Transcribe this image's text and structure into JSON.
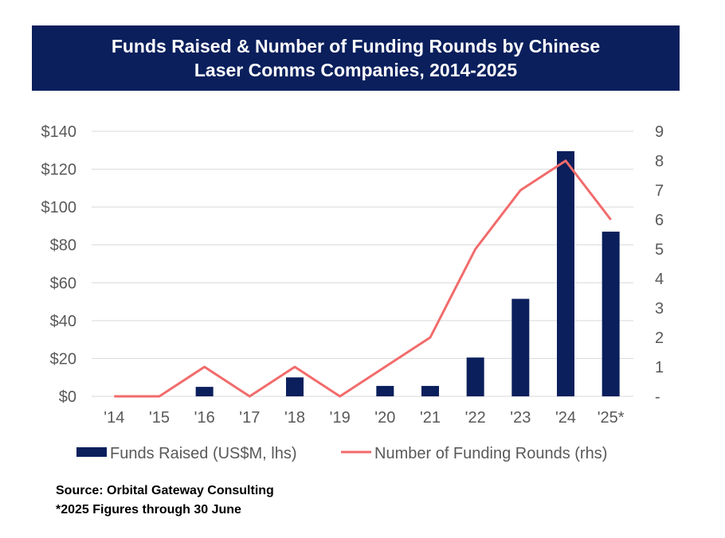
{
  "title_lines": [
    "Funds Raised & Number of Funding Rounds by Chinese",
    "Laser Comms Companies, 2014-2025"
  ],
  "colors": {
    "bar": "#0a1f5c",
    "line": "#f26b6b",
    "grid": "#d9d9d9",
    "tick": "#595959",
    "title_bg": "#0a1f5c"
  },
  "chart_data": {
    "type": "bar",
    "title": "Funds Raised & Number of Funding Rounds by Chinese Laser Comms Companies, 2014-2025",
    "categories": [
      "'14",
      "'15",
      "'16",
      "'17",
      "'18",
      "'19",
      "'20",
      "'21",
      "'22",
      "'23",
      "'24",
      "'25*"
    ],
    "series": [
      {
        "name": "Funds Raised (US$M, lhs)",
        "type": "bar",
        "axis": "left",
        "values": [
          0,
          0,
          5,
          0,
          10,
          0,
          5.5,
          5.5,
          20.5,
          51.5,
          129.5,
          87
        ]
      },
      {
        "name": "Number of Funding Rounds (rhs)",
        "type": "line",
        "axis": "right",
        "values": [
          0,
          0,
          1,
          0,
          1,
          0,
          1,
          2,
          5,
          7,
          8,
          6
        ]
      }
    ],
    "ylim_left": [
      0,
      140
    ],
    "ylim_right": [
      0,
      9
    ],
    "yticks_left": [
      "$0",
      "$20",
      "$40",
      "$60",
      "$80",
      "$100",
      "$120",
      "$140"
    ],
    "yticks_right": [
      "-",
      "1",
      "2",
      "3",
      "4",
      "5",
      "6",
      "7",
      "8",
      "9"
    ],
    "grid": true,
    "legend_position": "bottom"
  },
  "footer": {
    "source": "Source: Orbital Gateway Consulting",
    "note": "*2025 Figures through 30 June"
  }
}
